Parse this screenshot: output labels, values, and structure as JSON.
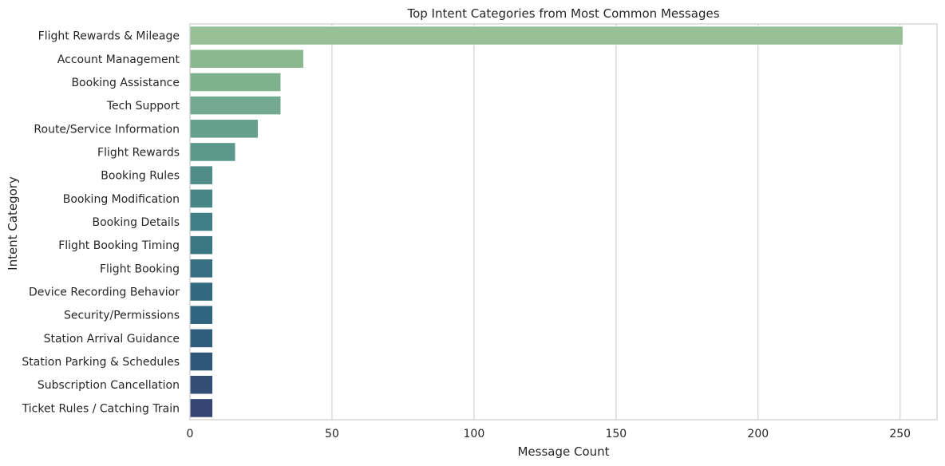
{
  "chart_data": {
    "type": "bar",
    "orientation": "horizontal",
    "title": "Top Intent Categories from Most Common Messages",
    "xlabel": "Message Count",
    "ylabel": "Intent Category",
    "xlim": [
      0,
      263
    ],
    "xticks": [
      0,
      50,
      100,
      150,
      200,
      250
    ],
    "grid": "vertical",
    "categories": [
      "Flight Rewards & Mileage",
      "Account Management",
      "Booking Assistance",
      "Tech Support",
      "Route/Service Information",
      "Flight Rewards",
      "Booking Rules",
      "Booking Modification",
      "Booking Details",
      "Flight Booking Timing",
      "Flight Booking",
      "Device Recording Behavior",
      "Security/Permissions",
      "Station Arrival Guidance",
      "Station Parking & Schedules",
      "Subscription Cancellation",
      "Ticket Rules / Catching Train"
    ],
    "values": [
      251,
      40,
      32,
      32,
      24,
      16,
      8,
      8,
      8,
      8,
      8,
      8,
      8,
      8,
      8,
      8,
      8
    ],
    "colors": [
      "#97c097",
      "#8bb88f",
      "#80b18f",
      "#73a98e",
      "#66a08c",
      "#5b978b",
      "#508d89",
      "#478587",
      "#407e85",
      "#3a7783",
      "#356f81",
      "#316a80",
      "#2f647e",
      "#2f5d7c",
      "#30567a",
      "#324e77",
      "#344473"
    ],
    "grid_color": "#d3d3d3",
    "spine_color": "#cfcfcf"
  }
}
